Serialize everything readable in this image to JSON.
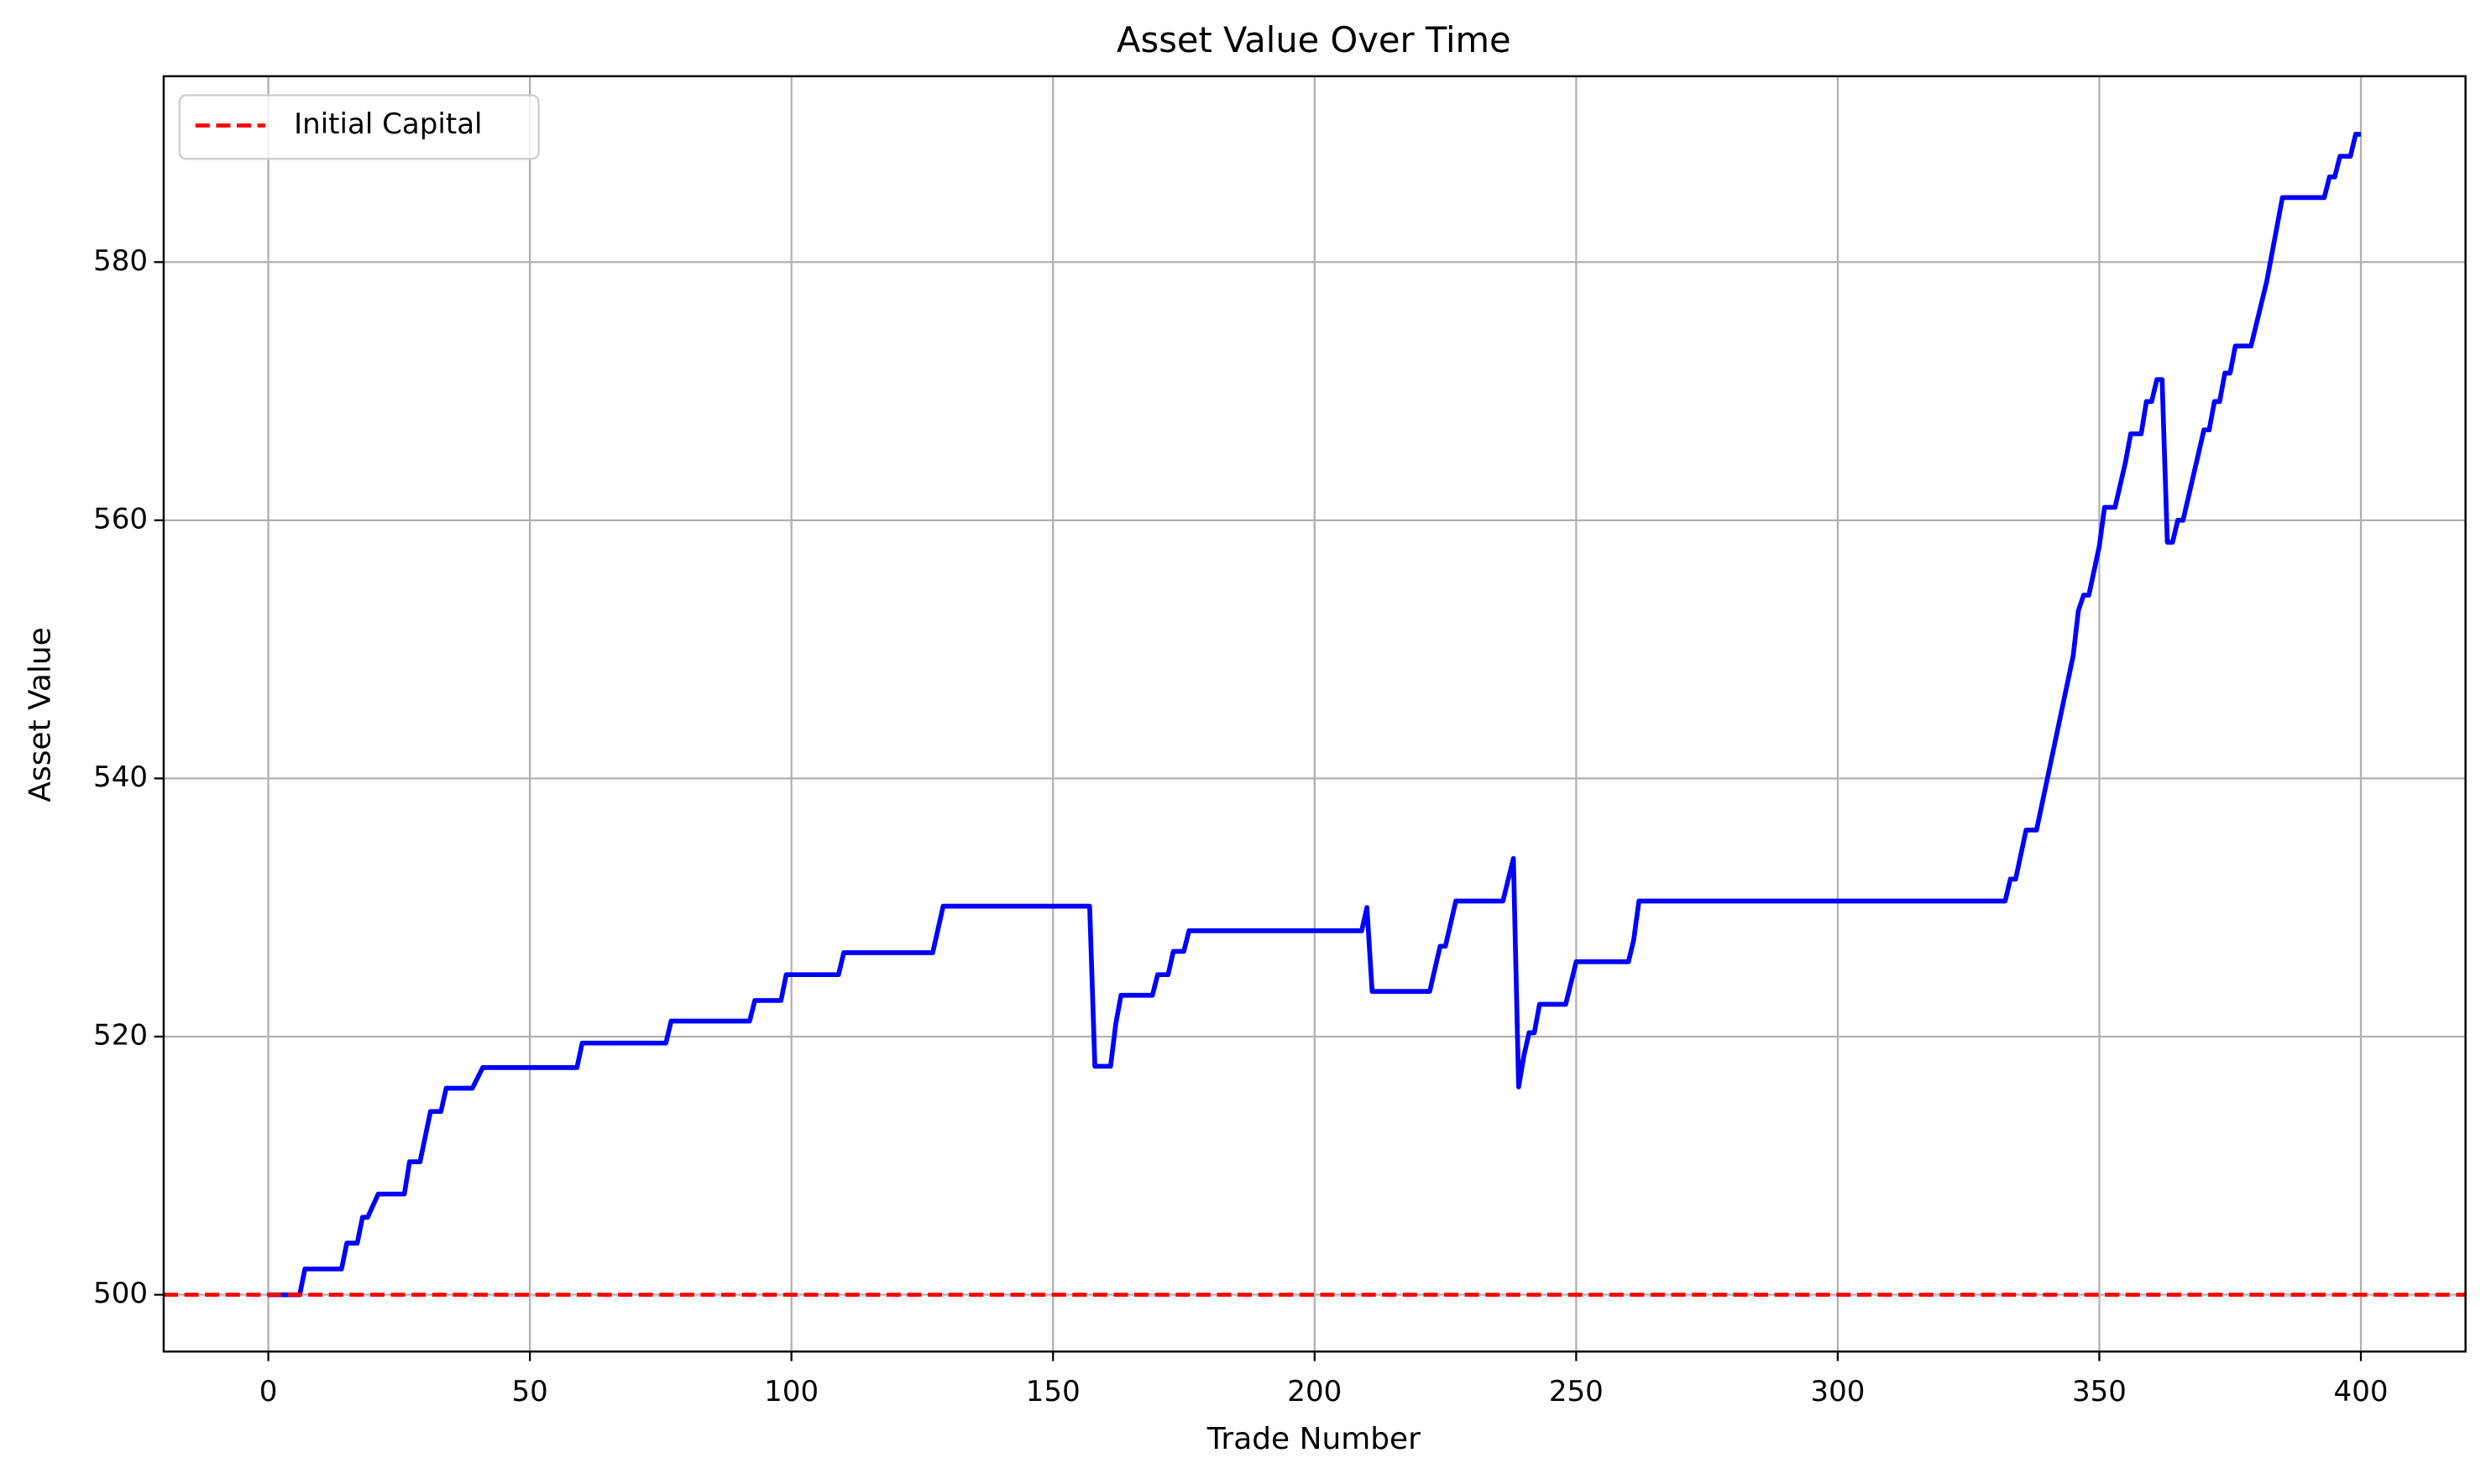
{
  "chart_data": {
    "type": "line",
    "title": "Asset Value Over Time",
    "x_label": "Trade Number",
    "y_label": "Asset Value",
    "xlim": [
      -20,
      420
    ],
    "ylim": [
      495.6,
      594.4
    ],
    "xticks": [
      0,
      50,
      100,
      150,
      200,
      250,
      300,
      350,
      400
    ],
    "yticks": [
      500,
      520,
      540,
      560,
      580
    ],
    "grid": true,
    "legend_loc": "upper left",
    "hlines": [
      {
        "name": "Initial Capital",
        "y": 500,
        "color": "#ff0000",
        "style": "dashed"
      }
    ],
    "series": [
      {
        "color": "#0000ff",
        "x": [
          0,
          6,
          7,
          14,
          15,
          17,
          18,
          19,
          21,
          26,
          27,
          29,
          31,
          33,
          34,
          39,
          41,
          59,
          60,
          76,
          77,
          92,
          93,
          98,
          99,
          109,
          110,
          127,
          129,
          157,
          158,
          161,
          162,
          163,
          169,
          170,
          172,
          173,
          175,
          176,
          209,
          210,
          211,
          222,
          224,
          225,
          227,
          236,
          238,
          239,
          240,
          241,
          242,
          243,
          248,
          250,
          260,
          261,
          262,
          332,
          333,
          334,
          336,
          338,
          345,
          346,
          347,
          348,
          350,
          351,
          353,
          355,
          356,
          358,
          359,
          360,
          361,
          362,
          363,
          364,
          365,
          366,
          370,
          371,
          372,
          373,
          374,
          375,
          376,
          379,
          382,
          385,
          393,
          394,
          395,
          396,
          398,
          399,
          400
        ],
        "values": [
          500,
          500,
          502,
          502,
          504,
          504,
          506,
          506,
          507.8,
          507.8,
          510.3,
          510.3,
          514.2,
          514.2,
          516,
          516,
          517.6,
          517.6,
          519.5,
          519.5,
          521.2,
          521.2,
          522.8,
          522.8,
          524.8,
          524.8,
          526.5,
          526.5,
          530.1,
          530.1,
          517.7,
          517.7,
          521,
          523.2,
          523.2,
          524.8,
          524.8,
          526.6,
          526.6,
          528.2,
          528.2,
          530,
          523.5,
          523.5,
          527,
          527,
          530.5,
          530.5,
          533.8,
          516.1,
          518.5,
          520.3,
          520.3,
          522.5,
          522.5,
          525.8,
          525.8,
          527.5,
          530.5,
          530.5,
          532.2,
          532.2,
          536,
          536,
          549.5,
          553,
          554.2,
          554.2,
          558,
          561,
          561,
          564.5,
          566.7,
          566.7,
          569.2,
          569.2,
          570.9,
          570.9,
          558.3,
          558.3,
          560,
          560,
          567,
          567,
          569.2,
          569.2,
          571.4,
          571.4,
          573.5,
          573.5,
          578.5,
          585,
          585,
          586.6,
          586.6,
          588.2,
          588.2,
          589.9,
          589.9
        ]
      }
    ]
  }
}
